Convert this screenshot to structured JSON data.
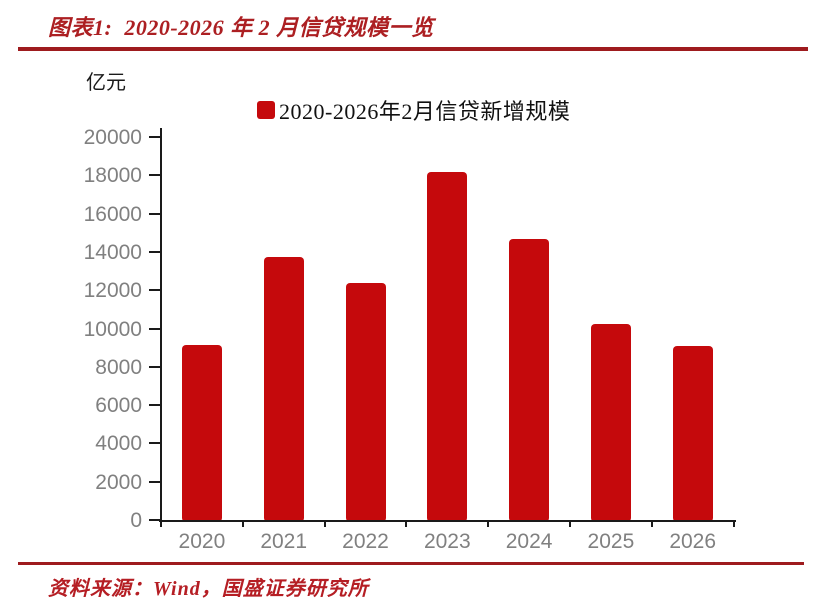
{
  "header": {
    "title": "图表1:  2020-2026 年 2 月信贷规模一览"
  },
  "chart_data": {
    "type": "bar",
    "title": "图表1: 2020-2026 年 2 月信贷规模一览",
    "unit_label": "亿元",
    "legend": "2020-2026年2月信贷新增规模",
    "legend_position": "top-center",
    "categories": [
      "2020",
      "2021",
      "2022",
      "2023",
      "2024",
      "2025",
      "2026"
    ],
    "values": [
      9150,
      13750,
      12400,
      18150,
      14650,
      10250,
      9100
    ],
    "xlabel": "",
    "ylabel": "亿元",
    "ylim": [
      0,
      20000
    ],
    "yticks": [
      0,
      2000,
      4000,
      6000,
      8000,
      10000,
      12000,
      14000,
      16000,
      18000,
      20000
    ],
    "grid": false,
    "bar_color": "#C5090C"
  },
  "footer": {
    "source": "资料来源：Wind，国盛证券研究所"
  },
  "colors": {
    "bar_red": "#C5090C",
    "title_red": "#AC1F22",
    "rule_red": "#9E1B1E",
    "source_red": "#B51E24",
    "axis_black": "#1a1a1a",
    "tick_label_gray": "#808080"
  }
}
